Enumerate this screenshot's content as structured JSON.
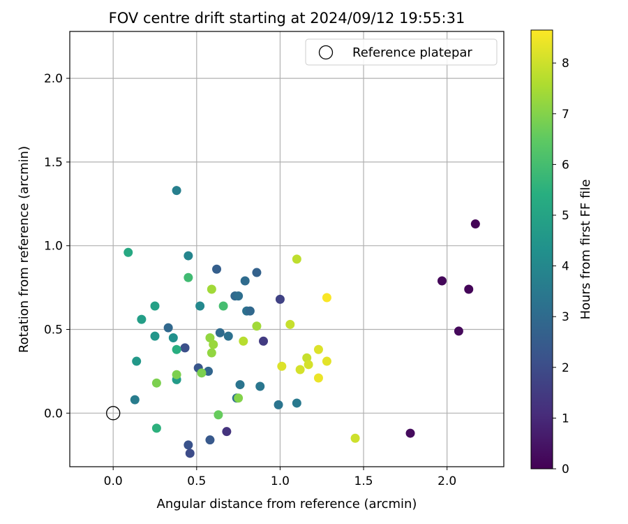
{
  "chart_data": {
    "type": "scatter",
    "title": "FOV centre drift starting at 2024/09/12 19:55:31",
    "xlabel": "Angular distance from reference (arcmin)",
    "ylabel": "Rotation from reference (arcmin)",
    "xlim": [
      -0.26,
      2.34
    ],
    "ylim": [
      -0.32,
      2.28
    ],
    "xticks": [
      "0.0",
      "0.5",
      "1.0",
      "1.5",
      "2.0"
    ],
    "yticks": [
      "0.0",
      "0.5",
      "1.0",
      "1.5",
      "2.0"
    ],
    "grid": true,
    "colormap": "viridis",
    "colorbar": {
      "label": "Hours from first FF file",
      "range": [
        0,
        8.65
      ],
      "ticks": [
        "0",
        "1",
        "2",
        "3",
        "4",
        "5",
        "6",
        "7",
        "8"
      ]
    },
    "legend": {
      "position": "top-right",
      "entries": [
        "Reference platepar"
      ]
    },
    "reference_point": {
      "x": 0.0,
      "y": 0.0
    },
    "points": [
      {
        "x": 2.17,
        "y": 1.13,
        "c": 0.05
      },
      {
        "x": 1.97,
        "y": 0.79,
        "c": 0.15
      },
      {
        "x": 2.13,
        "y": 0.74,
        "c": 0.1
      },
      {
        "x": 2.07,
        "y": 0.49,
        "c": 0.2
      },
      {
        "x": 1.78,
        "y": -0.12,
        "c": 0.25
      },
      {
        "x": 0.68,
        "y": -0.11,
        "c": 1.3
      },
      {
        "x": 1.0,
        "y": 0.68,
        "c": 1.7
      },
      {
        "x": 0.9,
        "y": 0.43,
        "c": 1.5
      },
      {
        "x": 0.43,
        "y": 0.39,
        "c": 2.1
      },
      {
        "x": 0.51,
        "y": 0.27,
        "c": 2.3
      },
      {
        "x": 0.57,
        "y": 0.25,
        "c": 2.8
      },
      {
        "x": 0.45,
        "y": -0.19,
        "c": 2.2
      },
      {
        "x": 0.46,
        "y": -0.24,
        "c": 2.0
      },
      {
        "x": 0.58,
        "y": -0.16,
        "c": 2.4
      },
      {
        "x": 0.62,
        "y": 0.86,
        "c": 2.6
      },
      {
        "x": 0.86,
        "y": 0.84,
        "c": 2.7
      },
      {
        "x": 0.79,
        "y": 0.79,
        "c": 3.0
      },
      {
        "x": 0.73,
        "y": 0.7,
        "c": 2.9
      },
      {
        "x": 0.75,
        "y": 0.7,
        "c": 3.1
      },
      {
        "x": 0.8,
        "y": 0.61,
        "c": 3.2
      },
      {
        "x": 0.82,
        "y": 0.61,
        "c": 2.9
      },
      {
        "x": 0.64,
        "y": 0.48,
        "c": 3.0
      },
      {
        "x": 0.69,
        "y": 0.46,
        "c": 3.2
      },
      {
        "x": 0.33,
        "y": 0.51,
        "c": 2.9
      },
      {
        "x": 0.76,
        "y": 0.17,
        "c": 3.3
      },
      {
        "x": 0.88,
        "y": 0.16,
        "c": 3.4
      },
      {
        "x": 0.74,
        "y": 0.09,
        "c": 3.1
      },
      {
        "x": 0.99,
        "y": 0.05,
        "c": 3.3
      },
      {
        "x": 1.1,
        "y": 0.06,
        "c": 3.5
      },
      {
        "x": 0.13,
        "y": 0.08,
        "c": 3.6
      },
      {
        "x": 0.38,
        "y": 1.33,
        "c": 3.7
      },
      {
        "x": 0.45,
        "y": 0.94,
        "c": 3.9
      },
      {
        "x": 0.52,
        "y": 0.64,
        "c": 4.0
      },
      {
        "x": 0.36,
        "y": 0.45,
        "c": 4.3
      },
      {
        "x": 0.25,
        "y": 0.46,
        "c": 4.5
      },
      {
        "x": 0.14,
        "y": 0.31,
        "c": 4.6
      },
      {
        "x": 0.38,
        "y": 0.2,
        "c": 4.7
      },
      {
        "x": 0.17,
        "y": 0.56,
        "c": 4.8
      },
      {
        "x": 0.25,
        "y": 0.64,
        "c": 4.9
      },
      {
        "x": 0.09,
        "y": 0.96,
        "c": 5.2
      },
      {
        "x": 0.38,
        "y": 0.38,
        "c": 5.4
      },
      {
        "x": 0.26,
        "y": -0.09,
        "c": 5.5
      },
      {
        "x": 0.45,
        "y": 0.81,
        "c": 5.9
      },
      {
        "x": 0.66,
        "y": 0.64,
        "c": 6.0
      },
      {
        "x": 0.63,
        "y": -0.01,
        "c": 6.6
      },
      {
        "x": 0.53,
        "y": 0.24,
        "c": 6.9
      },
      {
        "x": 0.26,
        "y": 0.18,
        "c": 6.9
      },
      {
        "x": 0.38,
        "y": 0.23,
        "c": 6.9
      },
      {
        "x": 0.75,
        "y": 0.09,
        "c": 7.0
      },
      {
        "x": 0.58,
        "y": 0.45,
        "c": 7.2
      },
      {
        "x": 0.6,
        "y": 0.41,
        "c": 7.3
      },
      {
        "x": 0.59,
        "y": 0.36,
        "c": 7.2
      },
      {
        "x": 0.59,
        "y": 0.74,
        "c": 7.4
      },
      {
        "x": 0.86,
        "y": 0.52,
        "c": 7.4
      },
      {
        "x": 0.78,
        "y": 0.43,
        "c": 7.7
      },
      {
        "x": 1.1,
        "y": 0.92,
        "c": 7.8
      },
      {
        "x": 1.06,
        "y": 0.53,
        "c": 7.9
      },
      {
        "x": 1.16,
        "y": 0.33,
        "c": 7.9
      },
      {
        "x": 1.17,
        "y": 0.29,
        "c": 8.1
      },
      {
        "x": 1.12,
        "y": 0.26,
        "c": 8.1
      },
      {
        "x": 1.01,
        "y": 0.28,
        "c": 8.2
      },
      {
        "x": 1.23,
        "y": 0.38,
        "c": 8.2
      },
      {
        "x": 1.28,
        "y": 0.31,
        "c": 8.3
      },
      {
        "x": 1.23,
        "y": 0.21,
        "c": 8.4
      },
      {
        "x": 1.28,
        "y": 0.69,
        "c": 8.6
      },
      {
        "x": 1.45,
        "y": -0.15,
        "c": 8.0
      }
    ]
  }
}
